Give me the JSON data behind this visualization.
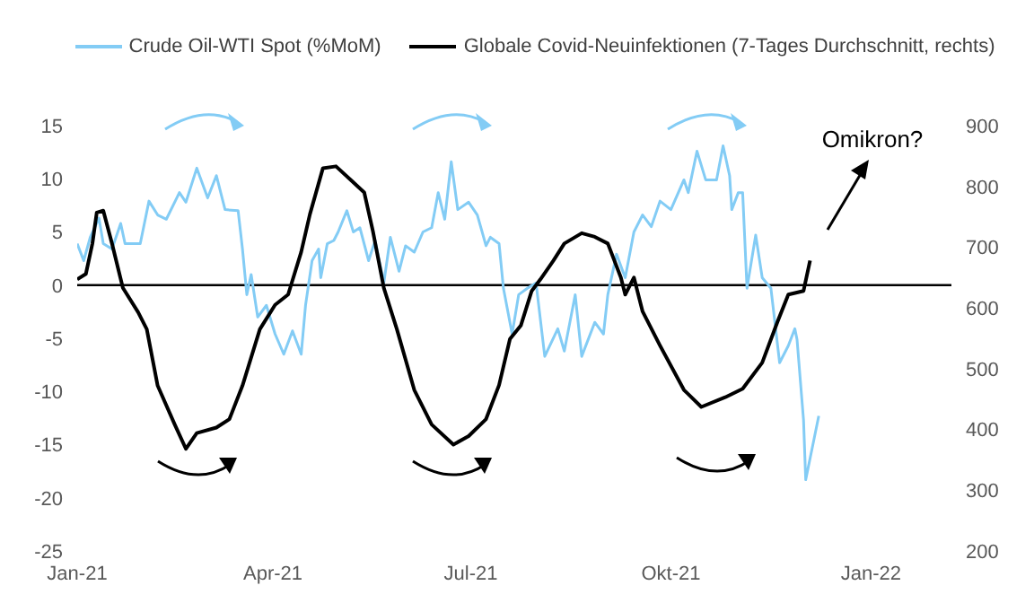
{
  "chart_data": {
    "type": "line",
    "xlim": [
      "2021-01-01",
      "2022-02-07"
    ],
    "xticks": [
      {
        "value": "2021-01-01",
        "label": "Jan-21"
      },
      {
        "value": "2021-04-01",
        "label": "Apr-21"
      },
      {
        "value": "2021-07-01",
        "label": "Jul-21"
      },
      {
        "value": "2021-10-01",
        "label": "Okt-21"
      },
      {
        "value": "2022-01-01",
        "label": "Jan-22"
      }
    ],
    "ylim": [
      -25,
      15
    ],
    "yticks": [
      -25,
      -20,
      -15,
      -10,
      -5,
      0,
      5,
      10,
      15
    ],
    "y2lim": [
      200,
      900
    ],
    "y2ticks": [
      200,
      300,
      400,
      500,
      600,
      700,
      800,
      900
    ],
    "legend": "top",
    "marker": "none",
    "ref_lines": [
      {
        "axis": "y",
        "value": 0,
        "color": "#000000"
      }
    ],
    "annotations": [
      "Omikron?"
    ],
    "series": [
      {
        "name": "Crude Oil-WTI Spot (%MoM)",
        "color": "#83ccf5",
        "x": [
          "2021-01-01",
          "2021-01-04",
          "2021-01-07",
          "2021-01-11",
          "2021-01-13",
          "2021-01-17",
          "2021-01-21",
          "2021-01-23",
          "2021-01-30",
          "2021-02-03",
          "2021-02-07",
          "2021-02-11",
          "2021-02-17",
          "2021-02-20",
          "2021-02-25",
          "2021-03-02",
          "2021-03-06",
          "2021-03-10",
          "2021-03-16",
          "2021-03-18",
          "2021-03-20",
          "2021-03-22",
          "2021-03-25",
          "2021-03-29",
          "2021-04-02",
          "2021-04-06",
          "2021-04-10",
          "2021-04-14",
          "2021-04-16",
          "2021-04-19",
          "2021-04-22",
          "2021-04-23",
          "2021-04-26",
          "2021-04-29",
          "2021-05-01",
          "2021-05-05",
          "2021-05-08",
          "2021-05-11",
          "2021-05-15",
          "2021-05-18",
          "2021-05-22",
          "2021-05-25",
          "2021-05-29",
          "2021-06-01",
          "2021-06-05",
          "2021-06-09",
          "2021-06-13",
          "2021-06-16",
          "2021-06-19",
          "2021-06-22",
          "2021-06-25",
          "2021-06-30",
          "2021-07-04",
          "2021-07-08",
          "2021-07-10",
          "2021-07-14",
          "2021-07-16",
          "2021-07-20",
          "2021-07-23",
          "2021-07-27",
          "2021-07-31",
          "2021-08-04",
          "2021-08-10",
          "2021-08-13",
          "2021-08-18",
          "2021-08-21",
          "2021-08-27",
          "2021-08-31",
          "2021-09-02",
          "2021-09-06",
          "2021-09-10",
          "2021-09-14",
          "2021-09-18",
          "2021-09-22",
          "2021-09-26",
          "2021-10-01",
          "2021-10-07",
          "2021-10-09",
          "2021-10-13",
          "2021-10-17",
          "2021-10-22",
          "2021-10-25",
          "2021-10-28",
          "2021-10-29",
          "2021-11-01",
          "2021-11-03",
          "2021-11-05",
          "2021-11-09",
          "2021-11-12",
          "2021-11-16",
          "2021-11-20",
          "2021-11-24",
          "2021-11-27",
          "2021-11-28",
          "2021-12-01",
          "2021-12-02",
          "2021-12-06",
          "2021-12-08"
        ],
        "values": [
          3.9,
          2.3,
          4.5,
          6.3,
          3.9,
          3.4,
          5.8,
          3.9,
          3.9,
          7.9,
          6.6,
          6.2,
          8.7,
          7.8,
          11.0,
          8.2,
          10.3,
          7.1,
          7.0,
          3.4,
          -0.9,
          1.0,
          -3.0,
          -1.9,
          -4.6,
          -6.5,
          -4.3,
          -6.5,
          -1.9,
          2.3,
          3.4,
          0.7,
          3.9,
          4.2,
          5.0,
          7.0,
          5.0,
          5.4,
          2.3,
          4.2,
          0.2,
          4.5,
          1.3,
          3.7,
          3.1,
          5.0,
          5.4,
          8.7,
          6.2,
          11.6,
          7.1,
          7.8,
          6.6,
          3.7,
          4.5,
          3.9,
          -0.3,
          -4.6,
          -0.9,
          -0.3,
          0.2,
          -6.7,
          -4.1,
          -6.2,
          -0.9,
          -6.7,
          -3.5,
          -4.6,
          -0.9,
          2.9,
          0.7,
          5.0,
          6.6,
          5.5,
          7.9,
          7.1,
          9.9,
          8.7,
          12.6,
          9.9,
          9.9,
          13.1,
          10.3,
          7.1,
          8.7,
          8.7,
          -0.3,
          4.7,
          0.7,
          -0.3,
          -7.3,
          -5.7,
          -4.1,
          -5.1,
          -12.7,
          -18.3,
          -14.3,
          -12.3
        ]
      },
      {
        "name": "Globale Covid-Neuinfektionen (7-Tages Durchschnitt, rechts)",
        "color": "#000000",
        "axis": "y2",
        "x": [
          "2021-01-01",
          "2021-01-05",
          "2021-01-08",
          "2021-01-10",
          "2021-01-13",
          "2021-01-17",
          "2021-01-22",
          "2021-01-29",
          "2021-02-02",
          "2021-02-07",
          "2021-02-15",
          "2021-02-20",
          "2021-02-25",
          "2021-03-06",
          "2021-03-12",
          "2021-03-18",
          "2021-03-26",
          "2021-04-02",
          "2021-04-08",
          "2021-04-14",
          "2021-04-18",
          "2021-04-24",
          "2021-04-30",
          "2021-05-07",
          "2021-05-13",
          "2021-05-17",
          "2021-05-22",
          "2021-05-28",
          "2021-06-05",
          "2021-06-13",
          "2021-06-23",
          "2021-06-30",
          "2021-07-08",
          "2021-07-14",
          "2021-07-19",
          "2021-07-24",
          "2021-07-29",
          "2021-08-02",
          "2021-08-08",
          "2021-08-13",
          "2021-08-21",
          "2021-08-27",
          "2021-09-02",
          "2021-09-08",
          "2021-09-10",
          "2021-09-14",
          "2021-09-18",
          "2021-09-26",
          "2021-10-07",
          "2021-10-15",
          "2021-10-26",
          "2021-11-03",
          "2021-11-12",
          "2021-11-19",
          "2021-11-24",
          "2021-12-01",
          "2021-12-04"
        ],
        "values": [
          647,
          656,
          706,
          757,
          760,
          706,
          633,
          593,
          565,
          472,
          407,
          368,
          394,
          403,
          417,
          472,
          565,
          605,
          622,
          692,
          754,
          830,
          833,
          810,
          790,
          726,
          633,
          565,
          465,
          408,
          375,
          389,
          417,
          473,
          549,
          571,
          628,
          647,
          678,
          706,
          723,
          717,
          706,
          650,
          622,
          650,
          594,
          538,
          465,
          437,
          453,
          467,
          510,
          577,
          622,
          628,
          678
        ]
      }
    ]
  }
}
